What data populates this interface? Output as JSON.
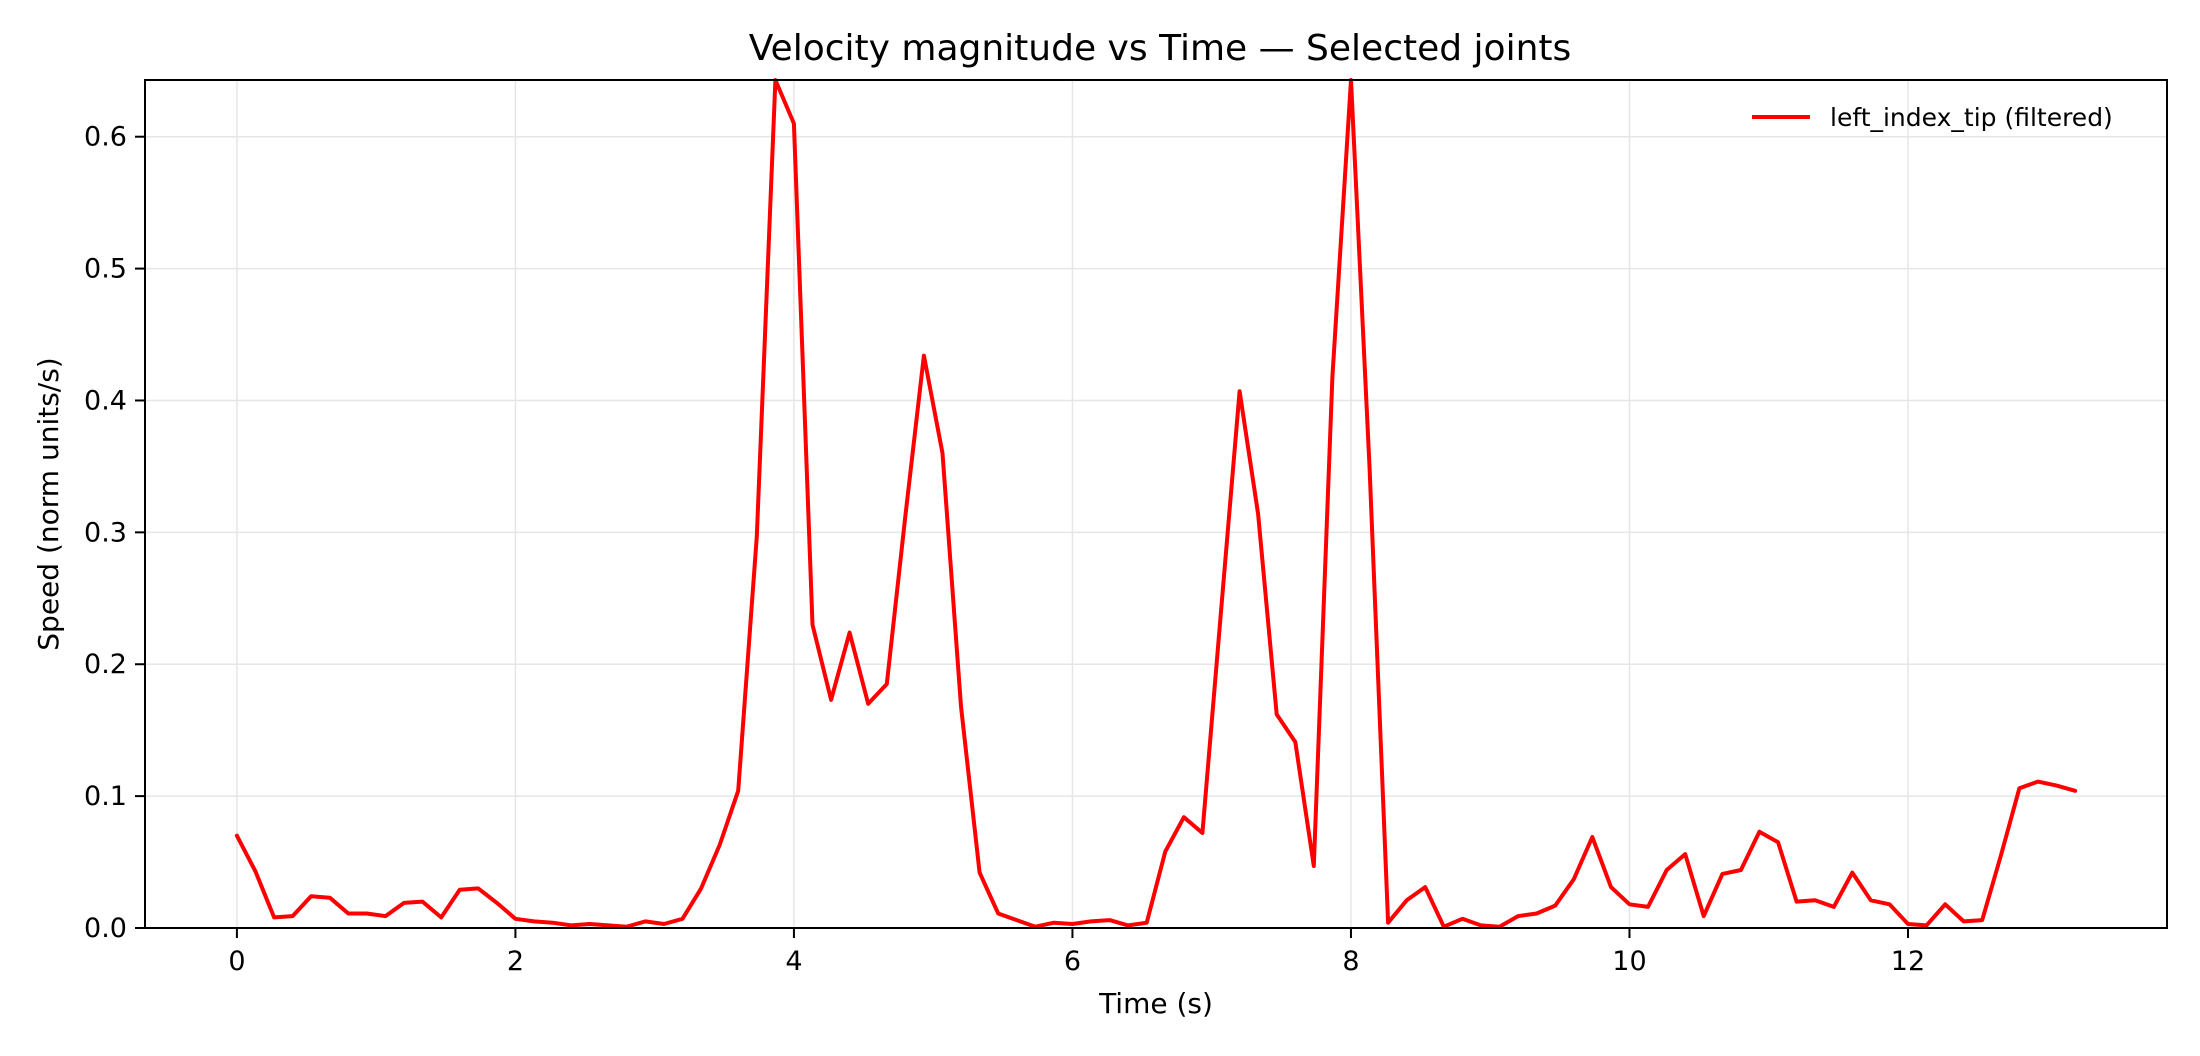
{
  "chart_data": {
    "type": "line",
    "title": "Velocity magnitude vs Time — Selected joints",
    "xlabel": "Time (s)",
    "ylabel": "Speed (norm units/s)",
    "xlim": [
      -0.66,
      13.86
    ],
    "ylim": [
      0.0,
      0.643
    ],
    "xticks": [
      0,
      2,
      4,
      6,
      8,
      10,
      12
    ],
    "yticks": [
      0.0,
      0.1,
      0.2,
      0.3,
      0.4,
      0.5,
      0.6
    ],
    "grid": true,
    "legend_position": "top-right",
    "colors": {
      "series": "#ff0000",
      "grid": "#e6e6e6",
      "axes": "#000000"
    },
    "series": [
      {
        "name": "left_index_tip (filtered)",
        "x": [
          0.0,
          0.133,
          0.267,
          0.4,
          0.533,
          0.667,
          0.8,
          0.933,
          1.067,
          1.2,
          1.333,
          1.467,
          1.6,
          1.733,
          1.867,
          2.0,
          2.133,
          2.267,
          2.4,
          2.533,
          2.667,
          2.8,
          2.933,
          3.067,
          3.2,
          3.333,
          3.467,
          3.6,
          3.733,
          3.867,
          4.0,
          4.133,
          4.267,
          4.4,
          4.533,
          4.667,
          4.8,
          4.933,
          5.067,
          5.2,
          5.333,
          5.467,
          5.6,
          5.733,
          5.867,
          6.0,
          6.133,
          6.267,
          6.4,
          6.533,
          6.667,
          6.8,
          6.933,
          7.067,
          7.2,
          7.333,
          7.467,
          7.6,
          7.733,
          7.867,
          8.0,
          8.133,
          8.267,
          8.4,
          8.533,
          8.667,
          8.8,
          8.933,
          9.067,
          9.2,
          9.333,
          9.467,
          9.6,
          9.733,
          9.867,
          10.0,
          10.133,
          10.267,
          10.4,
          10.533,
          10.667,
          10.8,
          10.933,
          11.067,
          11.2,
          11.333,
          11.467,
          11.6,
          11.733,
          11.867,
          12.0,
          12.133,
          12.267,
          12.4,
          12.533,
          12.667,
          12.8,
          12.933,
          13.067,
          13.2
        ],
        "y": [
          0.07,
          0.043,
          0.008,
          0.009,
          0.024,
          0.023,
          0.011,
          0.011,
          0.009,
          0.019,
          0.02,
          0.008,
          0.029,
          0.03,
          0.019,
          0.007,
          0.005,
          0.004,
          0.002,
          0.003,
          0.002,
          0.001,
          0.005,
          0.003,
          0.007,
          0.03,
          0.063,
          0.104,
          0.297,
          0.643,
          0.61,
          0.23,
          0.173,
          0.224,
          0.17,
          0.185,
          0.312,
          0.434,
          0.36,
          0.168,
          0.042,
          0.011,
          0.006,
          0.001,
          0.004,
          0.003,
          0.005,
          0.006,
          0.002,
          0.004,
          0.058,
          0.084,
          0.072,
          0.24,
          0.407,
          0.314,
          0.162,
          0.141,
          0.047,
          0.418,
          0.643,
          0.35,
          0.004,
          0.021,
          0.031,
          0.001,
          0.007,
          0.002,
          0.001,
          0.009,
          0.011,
          0.017,
          0.037,
          0.069,
          0.031,
          0.018,
          0.016,
          0.044,
          0.056,
          0.009,
          0.041,
          0.044,
          0.073,
          0.065,
          0.02,
          0.021,
          0.016,
          0.042,
          0.021,
          0.018,
          0.003,
          0.002,
          0.018,
          0.005,
          0.006,
          0.055,
          0.106,
          0.111,
          0.108,
          0.104
        ]
      }
    ]
  }
}
